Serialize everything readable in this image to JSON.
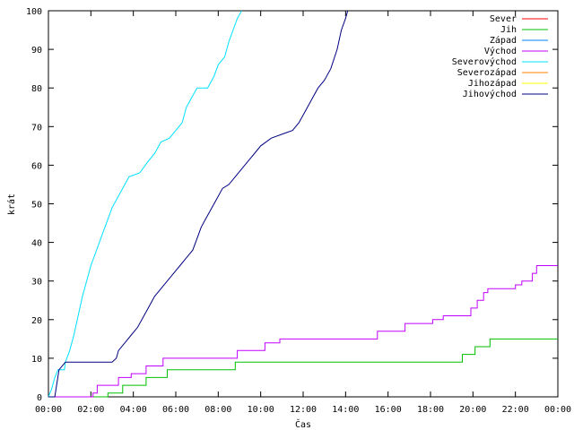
{
  "chart_data": {
    "type": "line",
    "title": "",
    "xlabel": "Čas",
    "ylabel": "krát",
    "xlim": [
      0,
      24
    ],
    "ylim": [
      0,
      100
    ],
    "x_ticks": [
      {
        "value": 0,
        "label": "00:00"
      },
      {
        "value": 2,
        "label": "02:00"
      },
      {
        "value": 4,
        "label": "04:00"
      },
      {
        "value": 6,
        "label": "06:00"
      },
      {
        "value": 8,
        "label": "08:00"
      },
      {
        "value": 10,
        "label": "10:00"
      },
      {
        "value": 12,
        "label": "12:00"
      },
      {
        "value": 14,
        "label": "14:00"
      },
      {
        "value": 16,
        "label": "16:00"
      },
      {
        "value": 18,
        "label": "18:00"
      },
      {
        "value": 20,
        "label": "20:00"
      },
      {
        "value": 22,
        "label": "22:00"
      },
      {
        "value": 24,
        "label": "00:00"
      }
    ],
    "y_ticks": [
      0,
      10,
      20,
      30,
      40,
      50,
      60,
      70,
      80,
      90,
      100
    ],
    "grid": false,
    "legend_position": "top-right",
    "series": [
      {
        "name": "Sever",
        "color": "#ff0000",
        "points": []
      },
      {
        "name": "Jih",
        "color": "#00c000",
        "points": [
          [
            0,
            0
          ],
          [
            2.8,
            0
          ],
          [
            2.8,
            1
          ],
          [
            3.5,
            1
          ],
          [
            3.5,
            3
          ],
          [
            4.6,
            3
          ],
          [
            4.6,
            5
          ],
          [
            5.6,
            5
          ],
          [
            5.6,
            7
          ],
          [
            8.8,
            7
          ],
          [
            8.8,
            9
          ],
          [
            19.5,
            9
          ],
          [
            19.5,
            11
          ],
          [
            20.1,
            11
          ],
          [
            20.1,
            13
          ],
          [
            20.8,
            13
          ],
          [
            20.8,
            15
          ],
          [
            24,
            15
          ]
        ]
      },
      {
        "name": "Západ",
        "color": "#0080ff",
        "points": []
      },
      {
        "name": "Východ",
        "color": "#c000ff",
        "points": [
          [
            0,
            0
          ],
          [
            2.1,
            0
          ],
          [
            2.1,
            1
          ],
          [
            2.3,
            1
          ],
          [
            2.3,
            3
          ],
          [
            3.3,
            3
          ],
          [
            3.3,
            5
          ],
          [
            3.9,
            5
          ],
          [
            3.9,
            6
          ],
          [
            4.6,
            6
          ],
          [
            4.6,
            8
          ],
          [
            5.4,
            8
          ],
          [
            5.4,
            10
          ],
          [
            8.9,
            10
          ],
          [
            8.9,
            12
          ],
          [
            10.2,
            12
          ],
          [
            10.2,
            14
          ],
          [
            10.9,
            14
          ],
          [
            10.9,
            15
          ],
          [
            15.5,
            15
          ],
          [
            15.5,
            17
          ],
          [
            16.8,
            17
          ],
          [
            16.8,
            19
          ],
          [
            18.1,
            19
          ],
          [
            18.1,
            20
          ],
          [
            18.6,
            20
          ],
          [
            18.6,
            21
          ],
          [
            19.9,
            21
          ],
          [
            19.9,
            23
          ],
          [
            20.2,
            23
          ],
          [
            20.2,
            25
          ],
          [
            20.5,
            25
          ],
          [
            20.5,
            27
          ],
          [
            20.7,
            27
          ],
          [
            20.7,
            28
          ],
          [
            22.0,
            28
          ],
          [
            22.0,
            29
          ],
          [
            22.3,
            29
          ],
          [
            22.3,
            30
          ],
          [
            22.8,
            30
          ],
          [
            22.8,
            32
          ],
          [
            23.0,
            32
          ],
          [
            23.0,
            34
          ],
          [
            24,
            34
          ]
        ]
      },
      {
        "name": "Severovýchod",
        "color": "#00e0ff",
        "points": [
          [
            0,
            0
          ],
          [
            0.15,
            2
          ],
          [
            0.3,
            5
          ],
          [
            0.45,
            7
          ],
          [
            0.75,
            7
          ],
          [
            0.8,
            9
          ],
          [
            1.0,
            12
          ],
          [
            1.2,
            16
          ],
          [
            1.4,
            21
          ],
          [
            1.6,
            26
          ],
          [
            1.8,
            30
          ],
          [
            2.0,
            34
          ],
          [
            2.2,
            37
          ],
          [
            2.4,
            40
          ],
          [
            2.6,
            43
          ],
          [
            2.8,
            46
          ],
          [
            3.0,
            49
          ],
          [
            3.2,
            51
          ],
          [
            3.5,
            54
          ],
          [
            3.8,
            57
          ],
          [
            4.3,
            58
          ],
          [
            4.7,
            61
          ],
          [
            5.0,
            63
          ],
          [
            5.3,
            66
          ],
          [
            5.7,
            67
          ],
          [
            6.0,
            69
          ],
          [
            6.3,
            71
          ],
          [
            6.5,
            75
          ],
          [
            6.8,
            78
          ],
          [
            7.0,
            80
          ],
          [
            7.5,
            80
          ],
          [
            7.8,
            83
          ],
          [
            8.0,
            86
          ],
          [
            8.3,
            88
          ],
          [
            8.5,
            92
          ],
          [
            8.7,
            95
          ],
          [
            8.9,
            98
          ],
          [
            9.1,
            100
          ]
        ]
      },
      {
        "name": "Severozápad",
        "color": "#ff8000",
        "points": []
      },
      {
        "name": "Jihozápad",
        "color": "#ffff00",
        "points": []
      },
      {
        "name": "Jihovýchod",
        "color": "#000080",
        "points": [
          [
            0,
            0
          ],
          [
            0.3,
            0
          ],
          [
            0.5,
            7
          ],
          [
            0.8,
            9
          ],
          [
            3.0,
            9
          ],
          [
            3.2,
            10
          ],
          [
            3.3,
            12
          ],
          [
            3.6,
            14
          ],
          [
            3.9,
            16
          ],
          [
            4.2,
            18
          ],
          [
            4.5,
            21
          ],
          [
            4.8,
            24
          ],
          [
            5.0,
            26
          ],
          [
            5.3,
            28
          ],
          [
            5.6,
            30
          ],
          [
            5.9,
            32
          ],
          [
            6.2,
            34
          ],
          [
            6.5,
            36
          ],
          [
            6.8,
            38
          ],
          [
            7.0,
            41
          ],
          [
            7.2,
            44
          ],
          [
            7.4,
            46
          ],
          [
            7.6,
            48
          ],
          [
            7.9,
            51
          ],
          [
            8.2,
            54
          ],
          [
            8.5,
            55
          ],
          [
            8.8,
            57
          ],
          [
            9.1,
            59
          ],
          [
            9.4,
            61
          ],
          [
            9.7,
            63
          ],
          [
            10.0,
            65
          ],
          [
            10.5,
            67
          ],
          [
            11.0,
            68
          ],
          [
            11.5,
            69
          ],
          [
            11.8,
            71
          ],
          [
            12.1,
            74
          ],
          [
            12.4,
            77
          ],
          [
            12.7,
            80
          ],
          [
            13.0,
            82
          ],
          [
            13.3,
            85
          ],
          [
            13.6,
            90
          ],
          [
            13.8,
            95
          ],
          [
            14.0,
            98
          ],
          [
            14.1,
            100
          ]
        ]
      }
    ]
  }
}
